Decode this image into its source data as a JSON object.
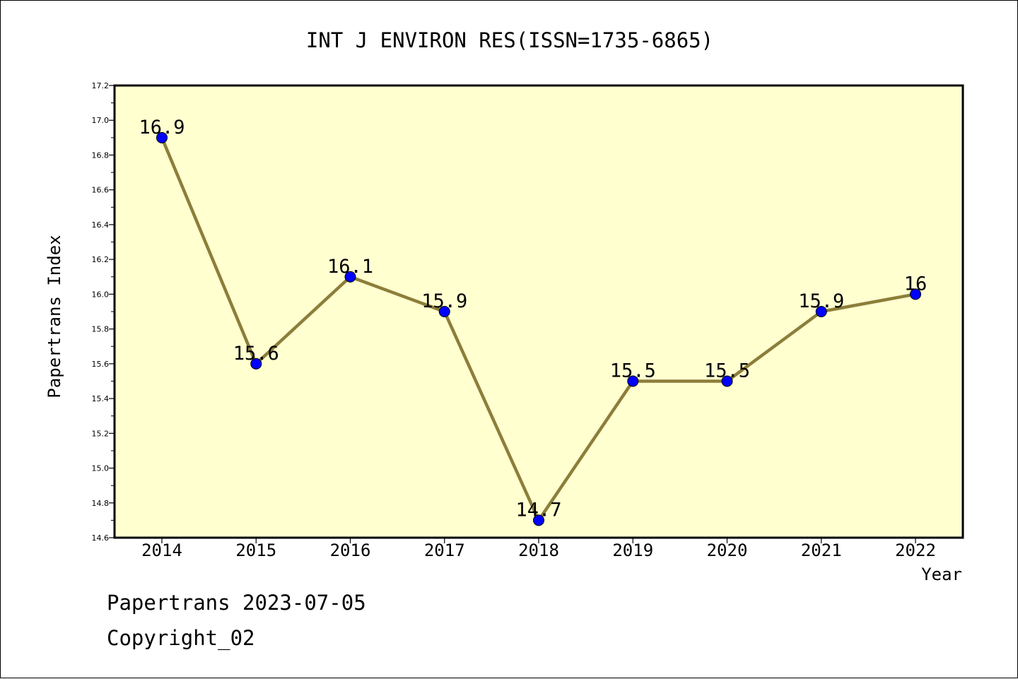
{
  "chart_data": {
    "type": "line",
    "title": "INT J ENVIRON RES(ISSN=1735-6865)",
    "xlabel": "Year",
    "ylabel": "Papertrans Index",
    "categories": [
      "2014",
      "2015",
      "2016",
      "2017",
      "2018",
      "2019",
      "2020",
      "2021",
      "2022"
    ],
    "series": [
      {
        "values": [
          16.9,
          15.6,
          16.1,
          15.9,
          14.7,
          15.5,
          15.5,
          15.9,
          16.0
        ],
        "labels": [
          "16.9",
          "15.6",
          "16.1",
          "15.9",
          "14.7",
          "15.5",
          "15.5",
          "15.9",
          "16"
        ]
      }
    ],
    "ylim": [
      14.6,
      17.2
    ],
    "yticks": [
      "14.6",
      "14.8",
      "15.0",
      "15.2",
      "15.4",
      "15.6",
      "15.8",
      "16.0",
      "16.2",
      "16.4",
      "16.6",
      "16.8",
      "17.0",
      "17.2"
    ],
    "grid": false,
    "legend": "none",
    "colors": {
      "plot_background": "#ffffd0",
      "line": "#8c7e3a",
      "marker": "#0000ff"
    }
  },
  "footer": {
    "stamp": "Papertrans 2023-07-05",
    "copyright": "Copyright_02"
  }
}
